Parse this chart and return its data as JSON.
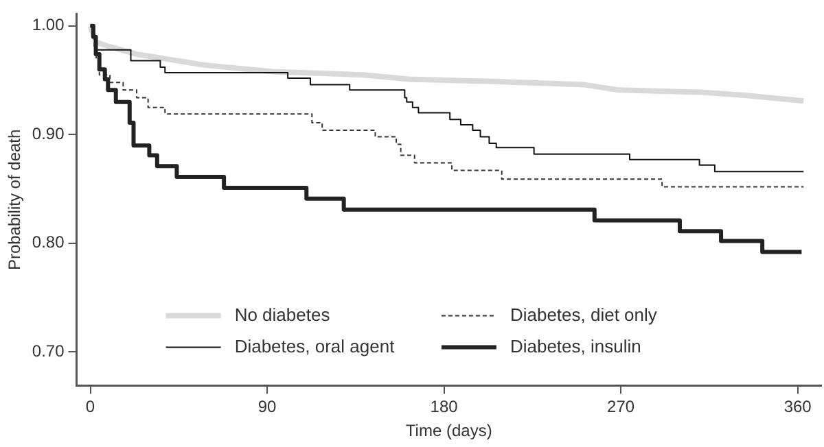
{
  "chart_data": {
    "type": "step",
    "xlabel": "Time (days)",
    "ylabel": "Probability of death",
    "xlim": [
      -7,
      372
    ],
    "xticks": [
      0,
      90,
      180,
      270,
      360
    ],
    "ylim": [
      0.669,
      1.011
    ],
    "yticks": [
      {
        "value": 0.7,
        "label": "0.70"
      },
      {
        "value": 0.8,
        "label": "0.80"
      },
      {
        "value": 0.9,
        "label": "0.90"
      },
      {
        "value": 1.0,
        "label": "1.00"
      }
    ],
    "grid": false,
    "legend": "bottom",
    "marker": "none",
    "series": [
      {
        "name": "No diabetes",
        "type": "line",
        "color": "#d9d9d9",
        "x": [
          0,
          3,
          9.7,
          23.6,
          58,
          93,
          139,
          162,
          204,
          251,
          269,
          311,
          334,
          363
        ],
        "values": [
          1.0,
          0.985,
          0.981,
          0.974,
          0.964,
          0.958,
          0.955,
          0.951,
          0.949,
          0.946,
          0.941,
          0.939,
          0.936,
          0.931
        ]
      },
      {
        "name": "Diabetes, oral agent",
        "type": "step",
        "color": "#111111",
        "line_style": "solid",
        "x": [
          0,
          1,
          3,
          20.6,
          35.6,
          38,
          100.5,
          112,
          132,
          160,
          161,
          164,
          167,
          183,
          188.5,
          194.6,
          198.5,
          203,
          206.6,
          225.8,
          274.5,
          310,
          317.8,
          363
        ],
        "values": [
          1.0,
          0.99,
          0.978,
          0.968,
          0.962,
          0.957,
          0.952,
          0.946,
          0.941,
          0.934,
          0.93,
          0.925,
          0.92,
          0.914,
          0.909,
          0.904,
          0.898,
          0.892,
          0.888,
          0.882,
          0.877,
          0.872,
          0.866,
          0.866
        ]
      },
      {
        "name": "Diabetes, diet only",
        "type": "step",
        "color": "#333333",
        "line_style": "dashed",
        "x": [
          0,
          1,
          2,
          3,
          4.6,
          10,
          16.7,
          23.6,
          29.4,
          38,
          112.8,
          118,
          145,
          155.7,
          158,
          165,
          184,
          209.4,
          291,
          363
        ],
        "values": [
          1.0,
          0.99,
          0.98,
          0.97,
          0.955,
          0.948,
          0.941,
          0.934,
          0.925,
          0.919,
          0.911,
          0.904,
          0.898,
          0.891,
          0.881,
          0.874,
          0.867,
          0.859,
          0.852,
          0.852
        ]
      },
      {
        "name": "Diabetes, insulin",
        "type": "step",
        "color": "#222222",
        "line_style": "solid",
        "x": [
          0,
          1.5,
          2.8,
          4.6,
          7.4,
          9,
          13,
          20,
          22,
          30,
          34,
          44,
          68,
          110,
          129,
          256.6,
          300,
          321,
          342,
          362
        ],
        "values": [
          1.0,
          0.99,
          0.974,
          0.96,
          0.951,
          0.941,
          0.93,
          0.911,
          0.89,
          0.881,
          0.871,
          0.861,
          0.851,
          0.841,
          0.831,
          0.821,
          0.811,
          0.802,
          0.792,
          0.792
        ]
      }
    ]
  }
}
